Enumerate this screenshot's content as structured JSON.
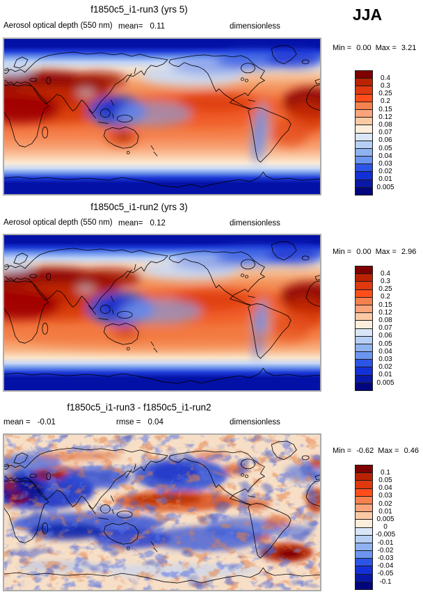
{
  "season": "JJA",
  "palette": [
    "#7E0000",
    "#BB2200",
    "#E03910",
    "#FF4E1A",
    "#F5824E",
    "#FAA47B",
    "#FBC9A4",
    "#FCEEDC",
    "#D8E6F7",
    "#B6CFF4",
    "#8FB2F0",
    "#6B95EE",
    "#2C55E6",
    "#1330D6",
    "#0A18A8",
    "#02067E"
  ],
  "panels": [
    {
      "id": "run3",
      "title": "f1850c5_i1-run3 (yrs 5)",
      "variable": "Aerosol optical depth (550 nm)",
      "stat_label": "mean=",
      "stat_value": "0.11",
      "units": "dimensionless",
      "min_label": "Min =",
      "min_value": "0.00",
      "max_label": "Max =",
      "max_value": "3.21",
      "colorbar_ticks": [
        "0.4",
        "0.3",
        "0.25",
        "0.2",
        "0.15",
        "0.12",
        "0.08",
        "0.07",
        "0.06",
        "0.05",
        "0.04",
        "0.03",
        "0.02",
        "0.01",
        "0.005"
      ]
    },
    {
      "id": "run2",
      "title": "f1850c5_i1-run2 (yrs 3)",
      "variable": "Aerosol optical depth (550 nm)",
      "stat_label": "mean=",
      "stat_value": "0.12",
      "units": "dimensionless",
      "min_label": "Min =",
      "min_value": "0.00",
      "max_label": "Max =",
      "max_value": "2.96",
      "colorbar_ticks": [
        "0.4",
        "0.3",
        "0.25",
        "0.2",
        "0.15",
        "0.12",
        "0.08",
        "0.07",
        "0.06",
        "0.05",
        "0.04",
        "0.03",
        "0.02",
        "0.01",
        "0.005"
      ]
    },
    {
      "id": "diff",
      "title": "f1850c5_i1-run3 - f1850c5_i1-run2",
      "stat_label": "mean =",
      "stat_value": "-0.01",
      "stat2_label": "rmse =",
      "stat2_value": "0.04",
      "units": "dimensionless",
      "min_label": "Min =",
      "min_value": "-0.62",
      "max_label": "Max =",
      "max_value": "0.46",
      "colorbar_ticks": [
        "0.1",
        "0.05",
        "0.04",
        "0.03",
        "0.02",
        "0.01",
        "0.005",
        "0",
        "-0.005",
        "-0.01",
        "-0.02",
        "-0.03",
        "-0.04",
        "-0.05",
        "-0.1"
      ]
    }
  ],
  "chart_data": [
    {
      "type": "heatmap",
      "subtype": "filled-contour global map (equirectangular, lon 0-360E, lat 90N-90S)",
      "title": "f1850c5_i1-run3 (yrs 5)",
      "variable": "Aerosol optical depth (550 nm)",
      "units": "dimensionless",
      "season": "JJA",
      "mean": 0.11,
      "min": 0.0,
      "max": 3.21,
      "contour_levels": [
        0.005,
        0.01,
        0.02,
        0.03,
        0.04,
        0.05,
        0.06,
        0.07,
        0.08,
        0.12,
        0.15,
        0.2,
        0.25,
        0.3,
        0.4
      ],
      "colormap": "16-step blue(low) to dark-red(high)",
      "legend_position": "right",
      "pattern_notes": "dark red maxima over North Africa / Middle East / South-Central Asia and tropical Atlantic; blue minima over polar oceans, maritime continent, Andes and North Pacific"
    },
    {
      "type": "heatmap",
      "subtype": "filled-contour global map (equirectangular, lon 0-360E, lat 90N-90S)",
      "title": "f1850c5_i1-run2 (yrs 3)",
      "variable": "Aerosol optical depth (550 nm)",
      "units": "dimensionless",
      "season": "JJA",
      "mean": 0.12,
      "min": 0.0,
      "max": 2.96,
      "contour_levels": [
        0.005,
        0.01,
        0.02,
        0.03,
        0.04,
        0.05,
        0.06,
        0.07,
        0.08,
        0.12,
        0.15,
        0.2,
        0.25,
        0.3,
        0.4
      ],
      "colormap": "16-step blue(low) to dark-red(high)",
      "legend_position": "right",
      "pattern_notes": "same pattern as run3 with slightly stronger southern mid-latitude band"
    },
    {
      "type": "heatmap",
      "subtype": "filled-contour global difference map (equirectangular, lon 0-360E, lat 90N-90S)",
      "title": "f1850c5_i1-run3 - f1850c5_i1-run2",
      "variable": "Aerosol optical depth (550 nm) difference",
      "units": "dimensionless",
      "season": "JJA",
      "mean": -0.01,
      "rmse": 0.04,
      "min": -0.62,
      "max": 0.46,
      "contour_levels": [
        -0.1,
        -0.05,
        -0.04,
        -0.03,
        -0.02,
        -0.01,
        -0.005,
        0,
        0.005,
        0.01,
        0.02,
        0.03,
        0.04,
        0.05,
        0.1
      ],
      "colormap": "16-step blue(negative) to dark-red(positive)",
      "legend_position": "right",
      "pattern_notes": "noisy field; strong negative (blue) over Europe/Middle East/North Africa, North Pacific and southern mid-latitudes; positive (red) band in central tropical Pacific, over Turkey/Caspian and South Atlantic"
    }
  ]
}
